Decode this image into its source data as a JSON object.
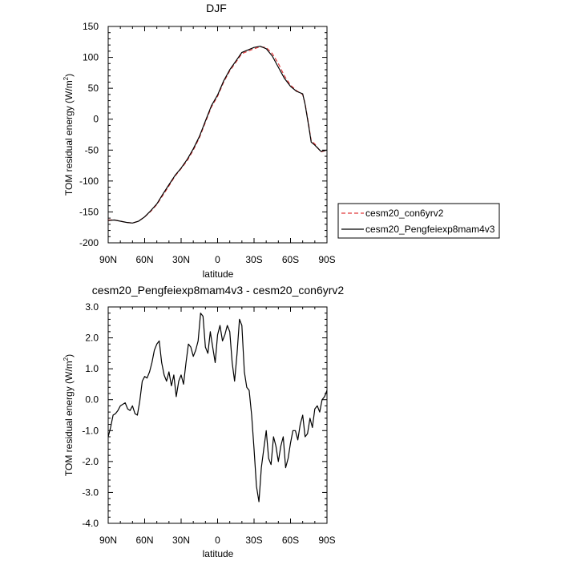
{
  "figure_colors": {
    "background": "#ffffff",
    "axis": "#000000",
    "series_dashed": "#e0393b",
    "series_solid": "#000000"
  },
  "chart_data": [
    {
      "type": "line",
      "title": "DJF",
      "xlabel": "latitude",
      "ylabel": "TOM residual energy (W/m",
      "ylabel_sup": "2",
      "ylabel_close": ")",
      "xlim": [
        90,
        -90
      ],
      "ylim": [
        -200,
        150
      ],
      "x_ticks": [
        90,
        60,
        30,
        0,
        -30,
        -60,
        -90
      ],
      "x_tick_labels": [
        "90N",
        "60N",
        "30N",
        "0",
        "30S",
        "60S",
        "90S"
      ],
      "y_ticks": [
        -200,
        -150,
        -100,
        -50,
        0,
        50,
        100,
        150
      ],
      "y_tick_labels": [
        "-200",
        "-150",
        "-100",
        "-50",
        "0",
        "50",
        "100",
        "150"
      ],
      "grid": false,
      "legend_position": "right",
      "series": [
        {
          "name": "cesm20_con6yrv2",
          "style": "dashed",
          "color": "#e0393b",
          "x": [
            90,
            85,
            80,
            75,
            70,
            65,
            60,
            55,
            50,
            45,
            40,
            35,
            30,
            25,
            20,
            15,
            10,
            5,
            0,
            -5,
            -10,
            -15,
            -20,
            -25,
            -30,
            -35,
            -40,
            -45,
            -50,
            -55,
            -60,
            -65,
            -70,
            -72,
            -75,
            -77,
            -80,
            -85,
            -90
          ],
          "y": [
            -163,
            -163,
            -165,
            -167,
            -168,
            -165,
            -158,
            -149,
            -138,
            -123,
            -108,
            -92,
            -80,
            -67,
            -50,
            -30,
            -5,
            20,
            37,
            60,
            78,
            92,
            106,
            110,
            114,
            117,
            116,
            106,
            90,
            70,
            55,
            46,
            40,
            25,
            -10,
            -35,
            -40,
            -53,
            -50
          ]
        },
        {
          "name": "cesm20_Pengfeiexp8mam4v3",
          "style": "solid",
          "color": "#000000",
          "x": [
            90,
            85,
            80,
            75,
            70,
            65,
            60,
            55,
            50,
            45,
            40,
            35,
            30,
            25,
            20,
            15,
            10,
            5,
            0,
            -5,
            -10,
            -15,
            -20,
            -25,
            -30,
            -35,
            -40,
            -45,
            -50,
            -55,
            -60,
            -65,
            -70,
            -72,
            -75,
            -77,
            -80,
            -85,
            -90
          ],
          "y": [
            -164,
            -163,
            -165,
            -167,
            -168,
            -165,
            -158,
            -148,
            -137,
            -121,
            -106,
            -91,
            -79,
            -65,
            -48,
            -28,
            -3,
            22,
            39,
            62,
            80,
            94,
            108,
            112,
            116,
            118,
            114,
            102,
            84,
            66,
            53,
            45,
            41,
            24,
            -12,
            -37,
            -42,
            -52,
            -50
          ]
        }
      ]
    },
    {
      "type": "line",
      "title": "cesm20_Pengfeiexp8mam4v3 - cesm20_con6yrv2",
      "xlabel": "latitude",
      "ylabel": "TOM residual energy (W/m",
      "ylabel_sup": "2",
      "ylabel_close": ")",
      "xlim": [
        90,
        -90
      ],
      "ylim": [
        -4.0,
        3.0
      ],
      "x_ticks": [
        90,
        60,
        30,
        0,
        -30,
        -60,
        -90
      ],
      "x_tick_labels": [
        "90N",
        "60N",
        "30N",
        "0",
        "30S",
        "60S",
        "90S"
      ],
      "y_ticks": [
        -4.0,
        -3.0,
        -2.0,
        -1.0,
        0.0,
        1.0,
        2.0,
        3.0
      ],
      "y_tick_labels": [
        "-4.0",
        "-3.0",
        "-2.0",
        "-1.0",
        "0.0",
        "1.0",
        "2.0",
        "3.0"
      ],
      "grid": false,
      "series": [
        {
          "name": "",
          "style": "solid",
          "color": "#000000",
          "x": [
            90,
            88,
            86,
            84,
            82,
            80,
            78,
            76,
            74,
            72,
            70,
            68,
            66,
            64,
            62,
            60,
            58,
            56,
            54,
            52,
            50,
            48,
            46,
            44,
            42,
            40,
            38,
            36,
            34,
            32,
            30,
            28,
            26,
            24,
            22,
            20,
            18,
            16,
            14,
            12,
            10,
            8,
            6,
            4,
            2,
            0,
            -2,
            -4,
            -6,
            -8,
            -10,
            -12,
            -14,
            -16,
            -18,
            -20,
            -22,
            -24,
            -26,
            -28,
            -30,
            -32,
            -34,
            -36,
            -38,
            -40,
            -42,
            -44,
            -46,
            -48,
            -50,
            -52,
            -54,
            -56,
            -58,
            -60,
            -62,
            -64,
            -66,
            -68,
            -70,
            -72,
            -74,
            -76,
            -78,
            -80,
            -82,
            -84,
            -86,
            -88,
            -90
          ],
          "y": [
            -1.2,
            -0.9,
            -0.5,
            -0.45,
            -0.35,
            -0.2,
            -0.15,
            -0.1,
            -0.3,
            -0.35,
            -0.2,
            -0.45,
            -0.5,
            -0.05,
            0.6,
            0.75,
            0.7,
            0.9,
            1.2,
            1.6,
            1.8,
            1.9,
            1.2,
            0.8,
            0.6,
            0.9,
            0.45,
            0.8,
            0.1,
            0.6,
            0.8,
            0.5,
            1.2,
            1.8,
            1.7,
            1.4,
            1.6,
            1.9,
            2.8,
            2.7,
            1.7,
            1.5,
            2.2,
            1.7,
            1.2,
            2.1,
            2.4,
            1.9,
            2.1,
            2.4,
            2.2,
            1.2,
            0.6,
            1.5,
            2.6,
            2.4,
            0.9,
            0.4,
            0.3,
            -0.5,
            -1.6,
            -2.8,
            -3.3,
            -2.2,
            -1.6,
            -1.0,
            -1.9,
            -2.1,
            -1.2,
            -1.5,
            -2.0,
            -1.5,
            -1.2,
            -2.2,
            -1.9,
            -1.4,
            -1.0,
            -1.0,
            -1.3,
            -0.8,
            -0.5,
            -1.2,
            -1.1,
            -0.6,
            -0.9,
            -0.3,
            -0.2,
            -0.4,
            0.0,
            0.1,
            0.3
          ]
        }
      ]
    }
  ]
}
